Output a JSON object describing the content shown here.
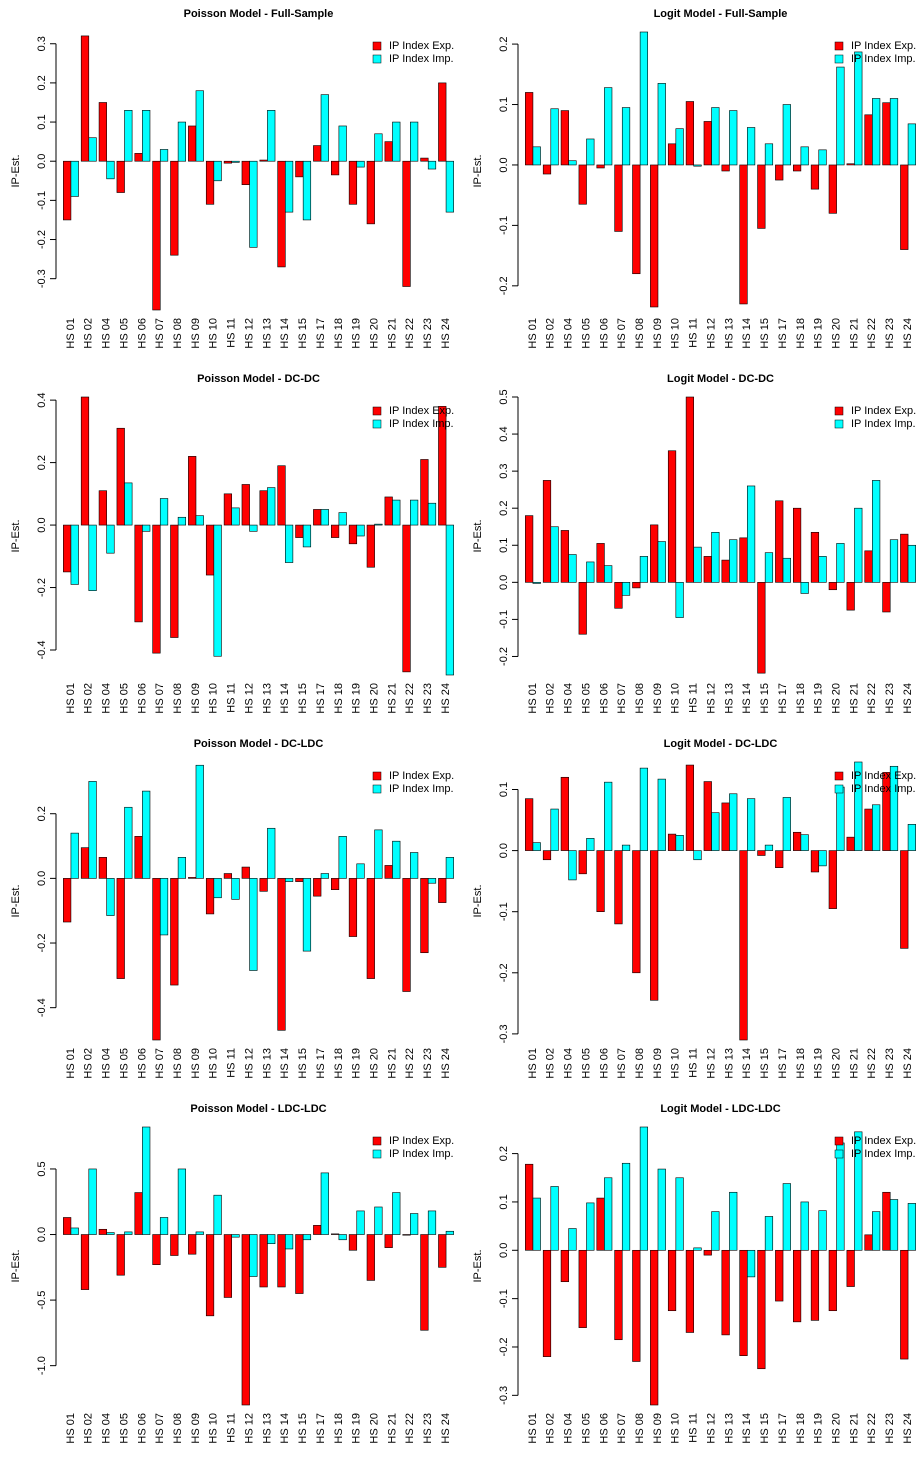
{
  "chart_data": [
    {
      "type": "bar",
      "title": "Poisson Model - Full-Sample",
      "y_label": "IP-Est.",
      "legend": "topright",
      "categories": [
        "HS 01",
        "HS 02",
        "HS 04",
        "HS 05",
        "HS 06",
        "HS 07",
        "HS 08",
        "HS 09",
        "HS 10",
        "HS 11",
        "HS 12",
        "HS 13",
        "HS 14",
        "HS 15",
        "HS 17",
        "HS 18",
        "HS 19",
        "HS 20",
        "HS 21",
        "HS 22",
        "HS 23",
        "HS 24"
      ],
      "series": [
        {
          "name": "IP Index Exp.",
          "color": "#ff0000",
          "values": [
            -0.15,
            0.32,
            0.15,
            -0.08,
            0.02,
            -0.38,
            -0.24,
            0.09,
            -0.11,
            -0.005,
            -0.06,
            0.003,
            -0.27,
            -0.04,
            0.04,
            -0.035,
            -0.11,
            -0.16,
            0.05,
            -0.32,
            0.008,
            0.2
          ]
        },
        {
          "name": "IP Index Imp.",
          "color": "#00ffff",
          "values": [
            -0.09,
            0.06,
            -0.045,
            0.13,
            0.13,
            0.03,
            0.1,
            0.18,
            -0.05,
            -0.003,
            -0.22,
            0.13,
            -0.13,
            -0.15,
            0.17,
            0.09,
            -0.015,
            0.07,
            0.1,
            0.1,
            -0.02,
            -0.13
          ]
        }
      ],
      "ylim": [
        -0.38,
        0.33
      ],
      "yticks": [
        -0.3,
        -0.2,
        -0.1,
        {
          "value": 0,
          "label": "0.0"
        },
        0.1,
        0.2,
        0.3
      ]
    },
    {
      "type": "bar",
      "title": "Logit Model - Full-Sample",
      "y_label": "IP-Est.",
      "legend": "topright",
      "categories": [
        "HS 01",
        "HS 02",
        "HS 04",
        "HS 05",
        "HS 06",
        "HS 07",
        "HS 08",
        "HS 09",
        "HS 10",
        "HS 11",
        "HS 12",
        "HS 13",
        "HS 14",
        "HS 15",
        "HS 17",
        "HS 18",
        "HS 19",
        "HS 20",
        "HS 21",
        "HS 22",
        "HS 23",
        "HS 24"
      ],
      "series": [
        {
          "name": "IP Index Exp.",
          "color": "#ff0000",
          "values": [
            0.12,
            -0.015,
            0.09,
            -0.065,
            -0.005,
            -0.11,
            -0.18,
            -0.235,
            0.035,
            0.105,
            0.072,
            -0.01,
            -0.23,
            -0.105,
            -0.025,
            -0.01,
            -0.04,
            -0.08,
            0.002,
            0.083,
            0.103,
            -0.14
          ]
        },
        {
          "name": "IP Index Imp.",
          "color": "#00ffff",
          "values": [
            0.03,
            0.093,
            0.007,
            0.043,
            0.128,
            0.095,
            0.22,
            0.135,
            0.06,
            -0.002,
            0.095,
            0.09,
            0.062,
            0.035,
            0.1,
            0.03,
            0.025,
            0.162,
            0.187,
            0.11,
            0.11,
            0.068
          ]
        }
      ],
      "ylim": [
        -0.24,
        0.22
      ],
      "yticks": [
        -0.2,
        -0.1,
        {
          "value": 0,
          "label": "0.0"
        },
        0.1,
        0.2
      ]
    },
    {
      "type": "bar",
      "title": "Poisson Model - DC-DC",
      "y_label": "IP-Est.",
      "legend": "topright",
      "categories": [
        "HS 01",
        "HS 02",
        "HS 04",
        "HS 05",
        "HS 06",
        "HS 07",
        "HS 08",
        "HS 09",
        "HS 10",
        "HS 11",
        "HS 12",
        "HS 13",
        "HS 14",
        "HS 15",
        "HS 17",
        "HS 18",
        "HS 19",
        "HS 20",
        "HS 21",
        "HS 22",
        "HS 23",
        "HS 24"
      ],
      "series": [
        {
          "name": "IP Index Exp.",
          "color": "#ff0000",
          "values": [
            -0.15,
            0.41,
            0.11,
            0.31,
            -0.31,
            -0.41,
            -0.36,
            0.22,
            -0.16,
            0.1,
            0.13,
            0.11,
            0.19,
            -0.04,
            0.05,
            -0.04,
            -0.06,
            -0.135,
            0.09,
            -0.47,
            0.21,
            0.38
          ]
        },
        {
          "name": "IP Index Imp.",
          "color": "#00ffff",
          "values": [
            -0.19,
            -0.21,
            -0.09,
            0.135,
            -0.02,
            0.085,
            0.025,
            0.03,
            -0.42,
            0.055,
            -0.02,
            0.12,
            -0.12,
            -0.07,
            0.05,
            0.04,
            -0.035,
            0.003,
            0.08,
            0.08,
            0.07,
            -0.48
          ]
        }
      ],
      "ylim": [
        -0.48,
        0.41
      ],
      "yticks": [
        -0.4,
        -0.2,
        {
          "value": 0,
          "label": "0.0"
        },
        0.2,
        0.4
      ]
    },
    {
      "type": "bar",
      "title": "Logit Model - DC-DC",
      "y_label": "IP-Est.",
      "legend": "topright",
      "categories": [
        "HS 01",
        "HS 02",
        "HS 04",
        "HS 05",
        "HS 06",
        "HS 07",
        "HS 08",
        "HS 09",
        "HS 10",
        "HS 11",
        "HS 12",
        "HS 13",
        "HS 14",
        "HS 15",
        "HS 17",
        "HS 18",
        "HS 19",
        "HS 20",
        "HS 21",
        "HS 22",
        "HS 23",
        "HS 24"
      ],
      "series": [
        {
          "name": "IP Index Exp.",
          "color": "#ff0000",
          "values": [
            0.18,
            0.275,
            0.14,
            -0.14,
            0.105,
            -0.07,
            -0.015,
            0.155,
            0.355,
            0.5,
            0.07,
            0.06,
            0.12,
            -0.245,
            0.22,
            0.2,
            0.135,
            -0.02,
            -0.075,
            0.085,
            -0.08,
            0.13
          ]
        },
        {
          "name": "IP Index Imp.",
          "color": "#00ffff",
          "values": [
            -0.003,
            0.15,
            0.075,
            0.055,
            0.045,
            -0.035,
            0.07,
            0.11,
            -0.095,
            0.095,
            0.135,
            0.115,
            0.26,
            0.08,
            0.065,
            -0.03,
            0.07,
            0.105,
            0.2,
            0.275,
            0.115,
            0.1
          ]
        }
      ],
      "ylim": [
        -0.25,
        0.5
      ],
      "yticks": [
        -0.2,
        -0.1,
        {
          "value": 0,
          "label": "0.0"
        },
        0.1,
        0.2,
        0.3,
        0.4,
        0.5
      ]
    },
    {
      "type": "bar",
      "title": "Poisson Model - DC-LDC",
      "y_label": "IP-Est.",
      "legend": "topright",
      "categories": [
        "HS 01",
        "HS 02",
        "HS 04",
        "HS 05",
        "HS 06",
        "HS 07",
        "HS 08",
        "HS 09",
        "HS 10",
        "HS 11",
        "HS 12",
        "HS 13",
        "HS 14",
        "HS 15",
        "HS 17",
        "HS 18",
        "HS 19",
        "HS 20",
        "HS 21",
        "HS 22",
        "HS 23",
        "HS 24"
      ],
      "series": [
        {
          "name": "IP Index Exp.",
          "color": "#ff0000",
          "values": [
            -0.135,
            0.095,
            0.065,
            -0.31,
            0.13,
            -0.5,
            -0.33,
            0.003,
            -0.11,
            0.015,
            0.035,
            -0.04,
            -0.47,
            -0.01,
            -0.055,
            -0.035,
            -0.18,
            -0.31,
            0.04,
            -0.35,
            -0.23,
            -0.075
          ]
        },
        {
          "name": "IP Index Imp.",
          "color": "#00ffff",
          "values": [
            0.14,
            0.3,
            -0.115,
            0.22,
            0.27,
            -0.175,
            0.065,
            0.35,
            -0.06,
            -0.065,
            -0.285,
            0.155,
            -0.01,
            -0.225,
            0.015,
            0.13,
            0.045,
            0.15,
            0.115,
            0.08,
            -0.015,
            0.065
          ]
        }
      ],
      "ylim": [
        -0.5,
        0.36
      ],
      "yticks": [
        -0.4,
        -0.2,
        {
          "value": 0,
          "label": "0.0"
        },
        0.2
      ]
    },
    {
      "type": "bar",
      "title": "Logit Model - DC-LDC",
      "y_label": "IP-Est.",
      "legend": "topright",
      "categories": [
        "HS 01",
        "HS 02",
        "HS 04",
        "HS 05",
        "HS 06",
        "HS 07",
        "HS 08",
        "HS 09",
        "HS 10",
        "HS 11",
        "HS 12",
        "HS 13",
        "HS 14",
        "HS 15",
        "HS 17",
        "HS 18",
        "HS 19",
        "HS 20",
        "HS 21",
        "HS 22",
        "HS 23",
        "HS 24"
      ],
      "series": [
        {
          "name": "IP Index Exp.",
          "color": "#ff0000",
          "values": [
            0.085,
            -0.015,
            0.12,
            -0.038,
            -0.1,
            -0.12,
            -0.2,
            -0.245,
            0.027,
            0.14,
            0.113,
            0.078,
            -0.31,
            -0.008,
            -0.028,
            0.03,
            -0.035,
            -0.095,
            0.022,
            0.068,
            0.128,
            -0.16
          ]
        },
        {
          "name": "IP Index Imp.",
          "color": "#00ffff",
          "values": [
            0.013,
            0.068,
            -0.048,
            0.02,
            0.112,
            0.009,
            0.135,
            0.117,
            0.025,
            -0.015,
            0.062,
            0.093,
            0.085,
            0.009,
            0.087,
            0.026,
            -0.025,
            0.104,
            0.145,
            0.075,
            0.138,
            0.043
          ]
        }
      ],
      "ylim": [
        -0.31,
        0.145
      ],
      "yticks": [
        -0.3,
        -0.2,
        -0.1,
        {
          "value": 0,
          "label": "0.0"
        },
        0.1
      ]
    },
    {
      "type": "bar",
      "title": "Poisson Model - LDC-LDC",
      "y_label": "IP-Est.",
      "legend": "topright",
      "categories": [
        "HS 01",
        "HS 02",
        "HS 04",
        "HS 05",
        "HS 06",
        "HS 07",
        "HS 08",
        "HS 09",
        "HS 10",
        "HS 11",
        "HS 12",
        "HS 13",
        "HS 14",
        "HS 15",
        "HS 17",
        "HS 18",
        "HS 19",
        "HS 20",
        "HS 21",
        "HS 22",
        "HS 23",
        "HS 24"
      ],
      "series": [
        {
          "name": "IP Index Exp.",
          "color": "#ff0000",
          "values": [
            0.13,
            -0.42,
            0.04,
            -0.31,
            0.32,
            -0.23,
            -0.16,
            -0.15,
            -0.62,
            -0.48,
            -1.3,
            -0.4,
            -0.4,
            -0.45,
            0.07,
            0.005,
            -0.12,
            -0.35,
            -0.1,
            -0.005,
            -0.73,
            -0.25
          ]
        },
        {
          "name": "IP Index Imp.",
          "color": "#00ffff",
          "values": [
            0.05,
            0.5,
            0.015,
            0.02,
            0.82,
            0.13,
            0.5,
            0.02,
            0.3,
            -0.02,
            -0.32,
            -0.07,
            -0.11,
            -0.04,
            0.47,
            -0.04,
            0.18,
            0.21,
            0.32,
            0.16,
            0.18,
            0.025
          ]
        }
      ],
      "ylim": [
        -1.3,
        0.82
      ],
      "yticks": [
        {
          "value": -1,
          "label": "-1.0"
        },
        -0.5,
        {
          "value": 0,
          "label": "0.0"
        },
        0.5
      ]
    },
    {
      "type": "bar",
      "title": "Logit Model - LDC-LDC",
      "y_label": "IP-Est.",
      "legend": "topright",
      "categories": [
        "HS 01",
        "HS 02",
        "HS 04",
        "HS 05",
        "HS 06",
        "HS 07",
        "HS 08",
        "HS 09",
        "HS 10",
        "HS 11",
        "HS 12",
        "HS 13",
        "HS 14",
        "HS 15",
        "HS 17",
        "HS 18",
        "HS 19",
        "HS 20",
        "HS 21",
        "HS 22",
        "HS 23",
        "HS 24"
      ],
      "series": [
        {
          "name": "IP Index Exp.",
          "color": "#ff0000",
          "values": [
            0.178,
            -0.22,
            -0.065,
            -0.16,
            0.108,
            -0.185,
            -0.23,
            -0.32,
            -0.125,
            -0.17,
            -0.01,
            -0.175,
            -0.218,
            -0.245,
            -0.105,
            -0.148,
            -0.145,
            -0.125,
            -0.075,
            0.032,
            0.12,
            -0.225
          ]
        },
        {
          "name": "IP Index Imp.",
          "color": "#00ffff",
          "values": [
            0.108,
            0.132,
            0.045,
            0.098,
            0.15,
            0.18,
            0.255,
            0.168,
            0.15,
            0.005,
            0.08,
            0.12,
            -0.055,
            0.07,
            0.138,
            0.1,
            0.082,
            0.222,
            0.245,
            0.08,
            0.105,
            0.097
          ]
        }
      ],
      "ylim": [
        -0.32,
        0.255
      ],
      "yticks": [
        -0.3,
        -0.2,
        -0.1,
        {
          "value": 0,
          "label": "0.0"
        },
        0.1,
        0.2
      ]
    }
  ]
}
